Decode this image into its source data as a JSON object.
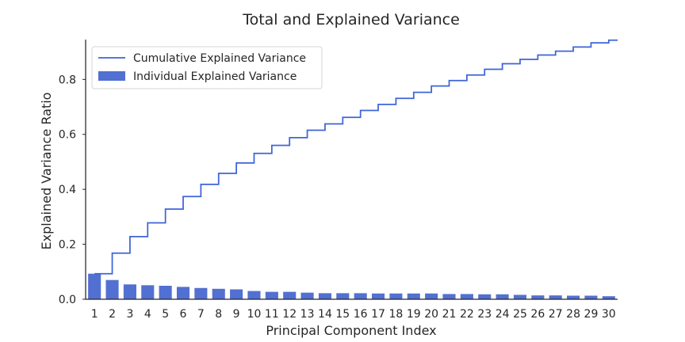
{
  "chart_data": {
    "type": "bar",
    "title": "Total and Explained Variance",
    "xlabel": "Principal Component Index",
    "ylabel": "Explained Variance Ratio",
    "ylim": [
      0,
      0.945
    ],
    "yticks": [
      0.0,
      0.2,
      0.4,
      0.6,
      0.8
    ],
    "grid": false,
    "legend_position": "top-left",
    "categories": [
      "1",
      "2",
      "3",
      "4",
      "5",
      "6",
      "7",
      "8",
      "9",
      "10",
      "11",
      "12",
      "13",
      "14",
      "15",
      "16",
      "17",
      "18",
      "19",
      "20",
      "21",
      "22",
      "23",
      "24",
      "25",
      "26",
      "27",
      "28",
      "29",
      "30"
    ],
    "series": [
      {
        "name": "Individual Explained Variance",
        "kind": "bar",
        "color": "#5270d2",
        "values": [
          0.093,
          0.07,
          0.054,
          0.051,
          0.049,
          0.045,
          0.041,
          0.038,
          0.036,
          0.03,
          0.027,
          0.027,
          0.024,
          0.022,
          0.022,
          0.022,
          0.021,
          0.021,
          0.021,
          0.021,
          0.019,
          0.019,
          0.018,
          0.018,
          0.016,
          0.014,
          0.014,
          0.013,
          0.013,
          0.011
        ]
      },
      {
        "name": "Cumulative Explained Variance",
        "kind": "step",
        "color": "#3e64d8",
        "values": [
          0.093,
          0.168,
          0.228,
          0.278,
          0.328,
          0.374,
          0.418,
          0.458,
          0.496,
          0.531,
          0.56,
          0.588,
          0.615,
          0.638,
          0.662,
          0.687,
          0.709,
          0.731,
          0.753,
          0.776,
          0.796,
          0.816,
          0.837,
          0.857,
          0.873,
          0.889,
          0.903,
          0.918,
          0.933,
          0.943
        ]
      }
    ]
  }
}
